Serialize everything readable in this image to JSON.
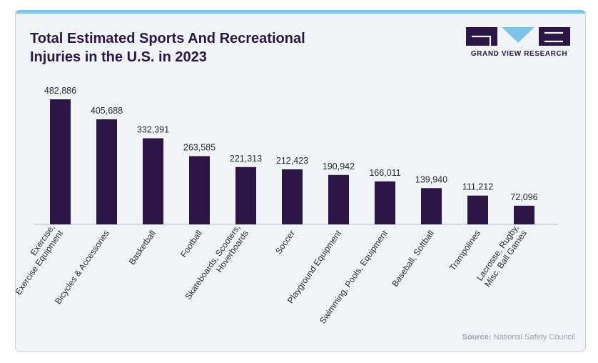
{
  "header": {
    "title_line1": "Total Estimated Sports And Recreational",
    "title_line2": "Injuries in the U.S. in 2023"
  },
  "logo": {
    "text": "GRAND VIEW RESEARCH",
    "color": "#2b1645",
    "accent": "#7fc4e8"
  },
  "source": {
    "label": "Source:",
    "text": "National Safety Council"
  },
  "colors": {
    "bar": "#2b1645",
    "accent_bar": "#7fc4e8",
    "background": "#f1f4f7"
  },
  "chart_data": {
    "type": "bar",
    "title": "Total Estimated Sports And Recreational Injuries in the U.S. in 2023",
    "categories": [
      [
        "Exercise,",
        "Exercise Equipment"
      ],
      [
        "Bicycles & Accessories"
      ],
      [
        "Basketball"
      ],
      [
        "Football"
      ],
      [
        "Skateboards, Scooters,",
        "Hoverboards"
      ],
      [
        "Soccer"
      ],
      [
        "Playground Equipment"
      ],
      [
        "Swimming, Pools, Equipment"
      ],
      [
        "Baseball, Softball"
      ],
      [
        "Trampolines"
      ],
      [
        "Lacrosse, Rugby,",
        "Misc. Ball Games"
      ]
    ],
    "values": [
      482886,
      405688,
      332391,
      263585,
      221313,
      212423,
      190942,
      166011,
      139940,
      111212,
      72096
    ],
    "value_labels": [
      "482,886",
      "405,688",
      "332,391",
      "263,585",
      "221,313",
      "212,423",
      "190,942",
      "166,011",
      "139,940",
      "111,212",
      "72,096"
    ],
    "xlabel": "",
    "ylabel": "",
    "ylim": [
      0,
      482886
    ],
    "grid": false,
    "legend": "none"
  }
}
